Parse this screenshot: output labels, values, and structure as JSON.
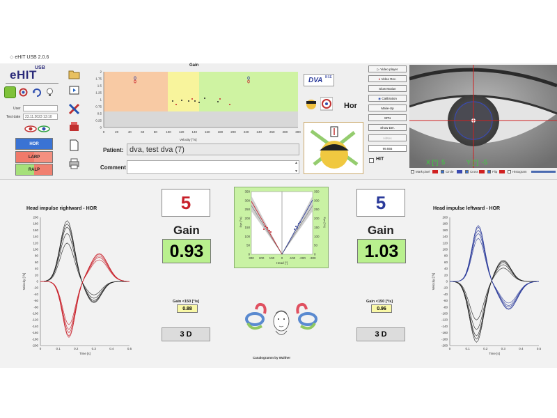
{
  "app": {
    "title": "eHIT USB 2.0.6",
    "logo": "eHIT",
    "logo_sup": "USB"
  },
  "patient": {
    "user_label": "User",
    "user_value": "",
    "test_date_label": "Test date",
    "test_date_value": "23.11.2023 13:10",
    "patient_label": "Patient:",
    "patient_value": "dva, test dva (7)",
    "comment_label": "Comment",
    "comment_value": ""
  },
  "canals": [
    "HOR",
    "LARP",
    "RALP"
  ],
  "gain_chart": {
    "title": "Gain",
    "xlabel": "Velocity [°/s]",
    "x_ticks": [
      "0",
      "20",
      "40",
      "60",
      "80",
      "100",
      "120",
      "140",
      "160",
      "180",
      "200",
      "220",
      "240",
      "260",
      "280",
      "300"
    ],
    "y_ticks": [
      "2",
      "1.75",
      "1.5",
      "1.25",
      "1",
      "0.75",
      "0.5",
      "0.25",
      "0"
    ]
  },
  "dva": {
    "label": "DVA",
    "sup": "BSE",
    "mode": "Hor"
  },
  "side_buttons": [
    "Video player",
    "Video Rec.",
    "Slow Motion",
    "Calibration",
    "Make-Up",
    "SPN",
    "Show Der.",
    "HiRes",
    "99.555"
  ],
  "hit_label": "HIT",
  "eye_video": {
    "x_label": "X [°]",
    "x_value": "5",
    "y_label": "Y [°]",
    "y_value": "-5",
    "legend": [
      "Mark pixel",
      "Circle",
      "Cross",
      "Flip",
      "Histogram"
    ]
  },
  "right_test": {
    "plot_title": "Head impulse rightward - HOR",
    "count": "5",
    "gain_label": "Gain",
    "gain_value": "0.93",
    "gain150_label": "Gain <150 [°/s]",
    "gain150_value": "0.88",
    "mode": "3 D",
    "y_ticks": [
      "200",
      "180",
      "160",
      "140",
      "120",
      "100",
      "80",
      "60",
      "40",
      "20",
      "0",
      "-20",
      "-40",
      "-60",
      "-80",
      "-100",
      "-120",
      "-140",
      "-160",
      "-180",
      "-200"
    ],
    "x_ticks": [
      "0",
      "0.1",
      "0.2",
      "0.3",
      "0.4",
      "0.5"
    ],
    "ylabel": "Velocity [°/s]",
    "xlabel": "Time [s]"
  },
  "left_test": {
    "plot_title": "Head impulse leftward - HOR",
    "count": "5",
    "gain_label": "Gain",
    "gain_value": "1.03",
    "gain150_label": "Gain <150 [°/s]",
    "gain150_value": "0.96",
    "mode": "3 D",
    "y_ticks": [
      "200",
      "180",
      "160",
      "140",
      "120",
      "100",
      "80",
      "60",
      "40",
      "20",
      "0",
      "-20",
      "-40",
      "-60",
      "-80",
      "-100",
      "-120",
      "-140",
      "-160",
      "-180",
      "-200"
    ],
    "x_ticks": [
      "0",
      "0.1",
      "0.2",
      "0.3",
      "0.4",
      "0.5"
    ],
    "ylabel": "Velocity [°/s]",
    "xlabel": "Time [s]"
  },
  "regression": {
    "left_ticks": [
      "350",
      "300",
      "250",
      "200",
      "150",
      "100",
      "50",
      "0"
    ],
    "right_ticks": [
      "350",
      "300",
      "250",
      "200",
      "150",
      "100",
      "50",
      "0"
    ],
    "x_ticks": [
      "300",
      "200",
      "100",
      "0",
      "-100",
      "-200",
      "-300"
    ],
    "xlabel": "Head [°]",
    "ylabel_left": "Eye [°/s]",
    "ylabel_right": "Eye [°/s]"
  },
  "canalogram_label": "Canalogramm by Walther",
  "colors": {
    "right": "#c8202a",
    "left": "#2a3a9a",
    "green": "#b9f08e",
    "yellow": "#f9f8a7"
  }
}
